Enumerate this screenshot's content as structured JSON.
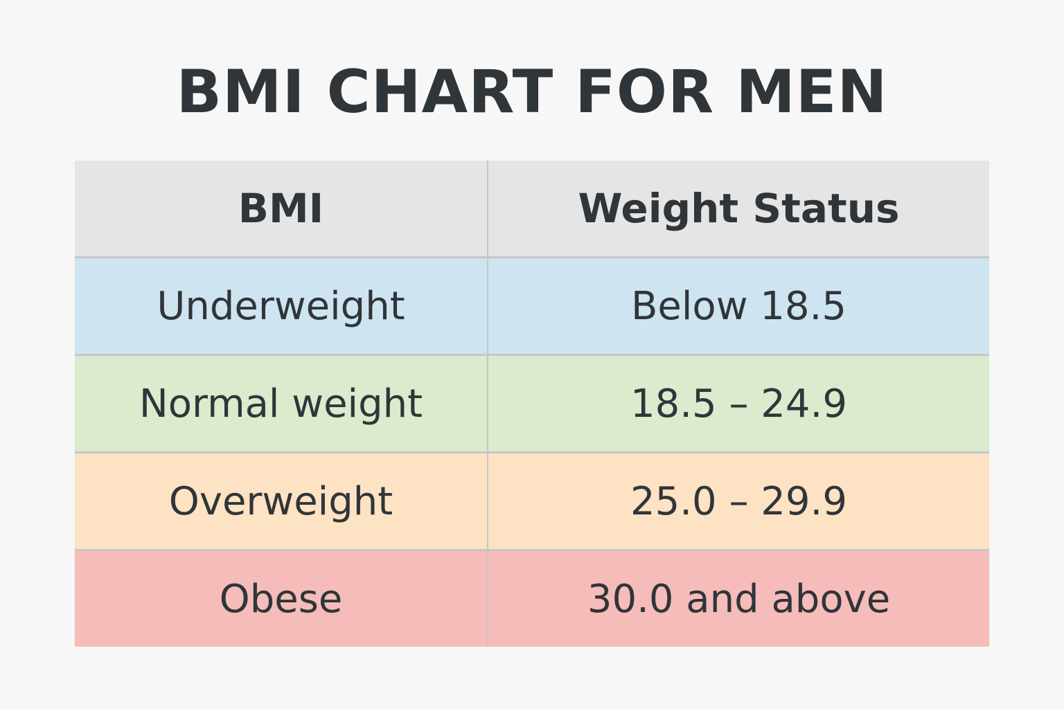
{
  "title": "BMI CHART FOR MEN",
  "table": {
    "headers": [
      "BMI",
      "Weight Status"
    ],
    "rows": [
      {
        "category": "Underweight",
        "range": "Below 18.5",
        "color": "#cfe4f1"
      },
      {
        "category": "Normal weight",
        "range": "18.5 – 24.9",
        "color": "#dceacd"
      },
      {
        "category": "Overweight",
        "range": "25.0 – 29.9",
        "color": "#fde2c3"
      },
      {
        "category": "Obese",
        "range": "30.0 and above",
        "color": "#f5bcb9"
      }
    ]
  },
  "colors": {
    "background": "#f7f7f7",
    "header_bg": "#e5e5e5",
    "text": "#2f3539",
    "grid_line": "#c4c7c9"
  }
}
